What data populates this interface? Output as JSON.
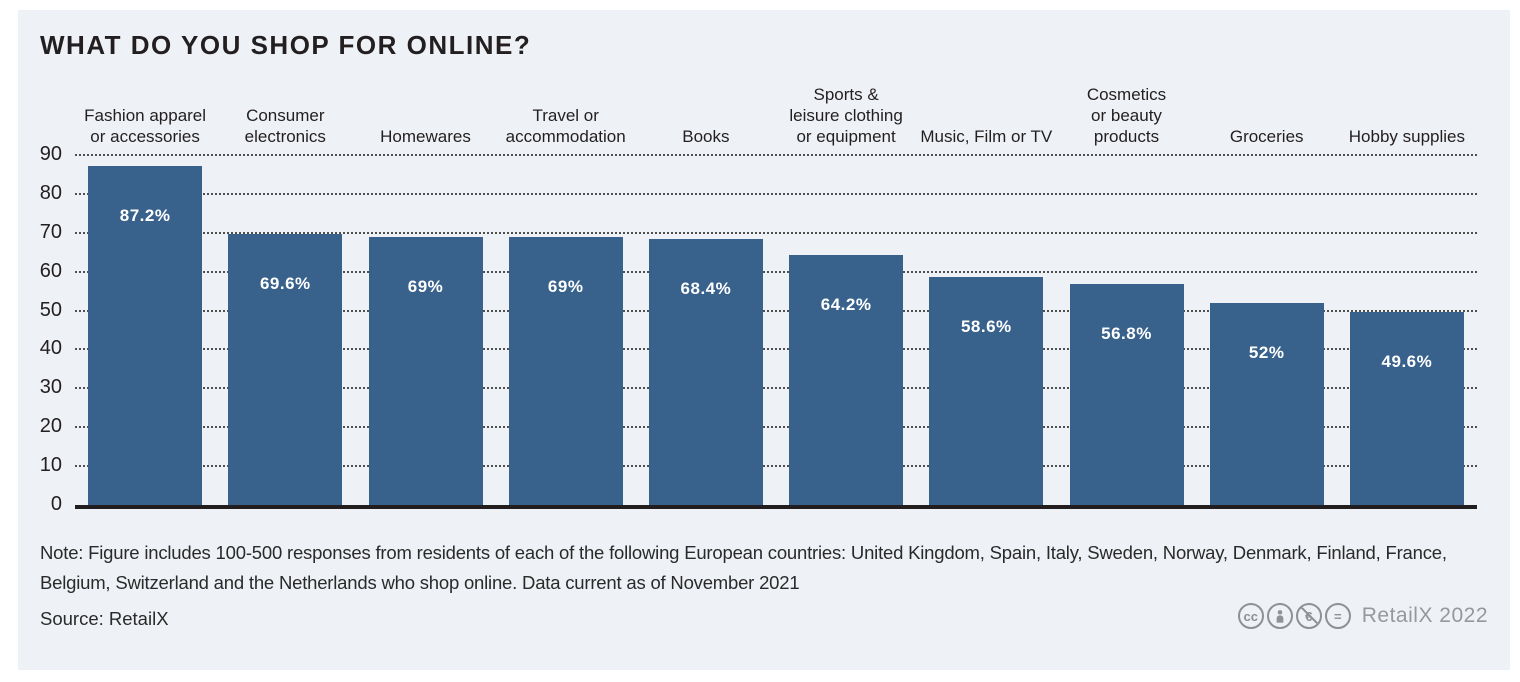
{
  "chart_data": {
    "type": "bar",
    "title": "WHAT DO YOU SHOP FOR ONLINE?",
    "categories": [
      "Fashion apparel or accessories",
      "Consumer electronics",
      "Homewares",
      "Travel or accommodation",
      "Books",
      "Sports & leisure clothing or equipment",
      "Music, Film or TV",
      "Cosmetics or beauty products",
      "Groceries",
      "Hobby supplies"
    ],
    "category_display": [
      "Fashion apparel\nor accessories",
      "Consumer\nelectronics",
      "Homewares",
      "Travel or\naccommodation",
      "Books",
      "Sports &\nleisure clothing\nor equipment",
      "Music, Film or TV",
      "Cosmetics\nor beauty\nproducts",
      "Groceries",
      "Hobby supplies"
    ],
    "values": [
      87.2,
      69.6,
      69,
      69,
      68.4,
      64.2,
      58.6,
      56.8,
      52,
      49.6
    ],
    "value_labels": [
      "87.2%",
      "69.6%",
      "69%",
      "69%",
      "68.4%",
      "64.2%",
      "58.6%",
      "56.8%",
      "52%",
      "49.6%"
    ],
    "ylabel": "",
    "xlabel": "",
    "y_ticks": [
      0,
      10,
      20,
      30,
      40,
      50,
      60,
      70,
      80,
      90
    ],
    "ylim": [
      0,
      90
    ],
    "grid": "horizontal-dotted",
    "legend": "none",
    "bar_color": "#38628C",
    "background_color": "#EEF1F5",
    "value_label_color": "#FFFFFF"
  },
  "footer": {
    "note": "Note: Figure includes 100-500 responses from residents of each of the following European countries: United Kingdom, Spain, Italy, Sweden, Norway, Denmark, Finland, France, Belgium, Switzerland and the Netherlands who shop online. Data current as of November 2021",
    "source": "Source: RetailX",
    "brand": "RetailX 2022",
    "license_icons": [
      "cc-icon",
      "attribution-person-icon",
      "no-commercial-euro-icon",
      "equals-icon"
    ],
    "license_color": "#8E9093"
  }
}
